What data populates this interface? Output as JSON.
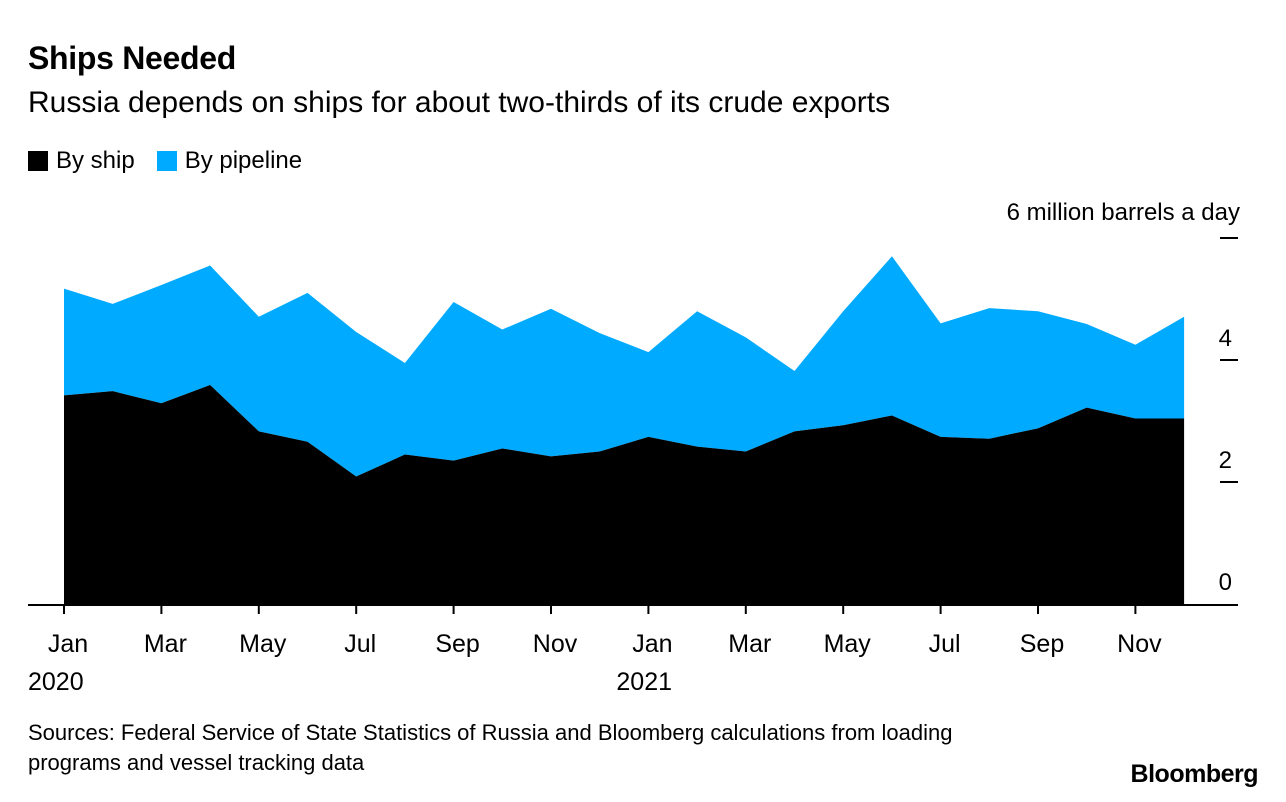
{
  "title": "Ships Needed",
  "subtitle": "Russia depends on ships for about two-thirds of its crude exports",
  "legend": [
    {
      "label": "By ship",
      "color": "#000000"
    },
    {
      "label": "By pipeline",
      "color": "#00aaff"
    }
  ],
  "source": "Sources: Federal Service of State Statistics of Russia and Bloomberg calculations from loading programs and vessel tracking data",
  "brand": "Bloomberg",
  "chart_data": {
    "type": "area",
    "stacked": true,
    "unit_label": "6 million barrels a day",
    "ylim": [
      0,
      6
    ],
    "yticks": [
      0,
      2,
      4,
      6
    ],
    "ytick_labels": [
      "0",
      "2",
      "4",
      ""
    ],
    "x": [
      "2020-01",
      "2020-02",
      "2020-03",
      "2020-04",
      "2020-05",
      "2020-06",
      "2020-07",
      "2020-08",
      "2020-09",
      "2020-10",
      "2020-11",
      "2020-12",
      "2021-01",
      "2021-02",
      "2021-03",
      "2021-04",
      "2021-05",
      "2021-06",
      "2021-07",
      "2021-08",
      "2021-09",
      "2021-10",
      "2021-11",
      "2021-12"
    ],
    "xtick_labels": [
      {
        "index": 0,
        "label": "Jan",
        "year": "2020"
      },
      {
        "index": 2,
        "label": "Mar"
      },
      {
        "index": 4,
        "label": "May"
      },
      {
        "index": 6,
        "label": "Jul"
      },
      {
        "index": 8,
        "label": "Sep"
      },
      {
        "index": 10,
        "label": "Nov"
      },
      {
        "index": 12,
        "label": "Jan",
        "year": "2021"
      },
      {
        "index": 14,
        "label": "Mar"
      },
      {
        "index": 16,
        "label": "May"
      },
      {
        "index": 18,
        "label": "Jul"
      },
      {
        "index": 20,
        "label": "Sep"
      },
      {
        "index": 22,
        "label": "Nov"
      }
    ],
    "series": [
      {
        "name": "By ship",
        "color": "#000000",
        "values": [
          3.42,
          3.49,
          3.29,
          3.59,
          2.83,
          2.66,
          2.09,
          2.45,
          2.35,
          2.55,
          2.42,
          2.5,
          2.74,
          2.58,
          2.5,
          2.83,
          2.93,
          3.09,
          2.74,
          2.71,
          2.88,
          3.22,
          3.04,
          3.04
        ]
      },
      {
        "name": "By pipeline",
        "color": "#00aaff",
        "values": [
          1.75,
          1.43,
          1.94,
          1.96,
          1.88,
          2.44,
          2.37,
          1.5,
          2.6,
          1.95,
          2.42,
          1.94,
          1.39,
          2.22,
          1.87,
          0.99,
          1.87,
          2.61,
          1.86,
          2.14,
          1.92,
          1.37,
          1.21,
          1.67
        ]
      }
    ]
  }
}
